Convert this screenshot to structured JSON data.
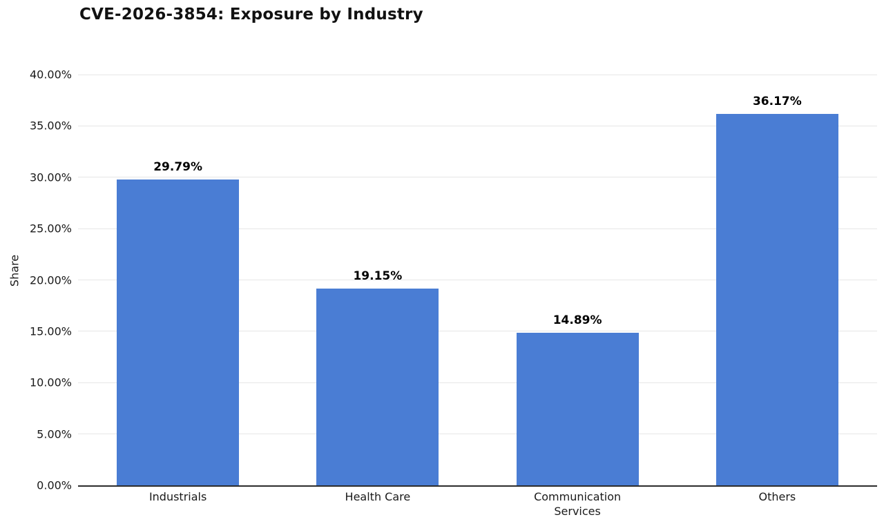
{
  "page": {
    "background": "#ffffff"
  },
  "chart_data": {
    "type": "bar",
    "title": "CVE-2026-3854: Exposure by Industry",
    "categories": [
      "Industrials",
      "Health Care",
      "Communication\nServices",
      "Others"
    ],
    "values": [
      29.79,
      19.15,
      14.89,
      36.17
    ],
    "value_labels": [
      "29.79%",
      "19.15%",
      "14.89%",
      "36.17%"
    ],
    "xlabel": "",
    "ylabel": "Share",
    "ylim": [
      0,
      40
    ],
    "ytick_step": 5,
    "ytick_labels": [
      "0.00%",
      "5.00%",
      "10.00%",
      "15.00%",
      "20.00%",
      "25.00%",
      "30.00%",
      "35.00%",
      "40.00%"
    ],
    "grid": true,
    "legend": false,
    "colors": {
      "bar": "#4a7dd4",
      "gridline": "#e6e6e6",
      "axis_line": "#2b2b2b",
      "title_text": "#111111",
      "tick_text": "#1a1a1a",
      "value_label_text": "#000000"
    }
  }
}
